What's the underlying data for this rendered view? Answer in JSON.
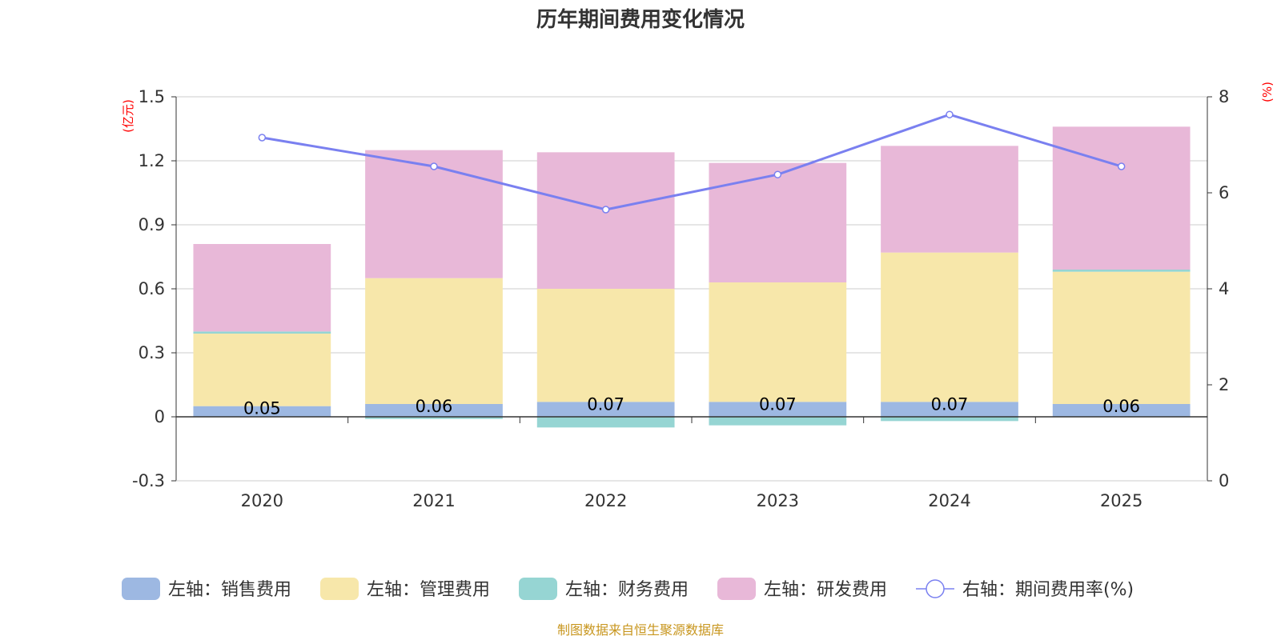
{
  "chart_data": {
    "type": "bar",
    "title": "历年期间费用变化情况",
    "categories": [
      "2020",
      "2021",
      "2022",
      "2023",
      "2024",
      "2025"
    ],
    "left_axis": {
      "unit_label": "(亿元)",
      "ylim": [
        -0.3,
        1.5
      ],
      "ticks": [
        1.5,
        1.2,
        0.9,
        0.6,
        0.3,
        0,
        -0.3
      ],
      "tick_labels": [
        "1.5",
        "1.2",
        "0.9",
        "0.6",
        "0.3",
        "0",
        "-0.3"
      ]
    },
    "right_axis": {
      "unit_label": "(%)",
      "ylim": [
        0,
        8
      ],
      "ticks": [
        8,
        6,
        4,
        2,
        0
      ],
      "tick_labels": [
        "8",
        "6",
        "4",
        "2",
        "0"
      ]
    },
    "series": [
      {
        "name": "左轴：销售费用",
        "kind": "bar",
        "color": "#9db8e2",
        "values": [
          0.05,
          0.06,
          0.07,
          0.07,
          0.07,
          0.06
        ],
        "data_labels": [
          "0.05",
          "0.06",
          "0.07",
          "0.07",
          "0.07",
          "0.06"
        ]
      },
      {
        "name": "左轴：管理费用",
        "kind": "bar",
        "color": "#f7e7aa",
        "values": [
          0.34,
          0.59,
          0.53,
          0.56,
          0.7,
          0.62
        ]
      },
      {
        "name": "左轴：财务费用",
        "kind": "bar",
        "color": "#96d5d3",
        "values": [
          0.01,
          -0.01,
          -0.05,
          -0.04,
          -0.02,
          0.01
        ]
      },
      {
        "name": "左轴：研发费用",
        "kind": "bar",
        "color": "#e8b8d8",
        "values": [
          0.41,
          0.6,
          0.64,
          0.56,
          0.5,
          0.67
        ]
      },
      {
        "name": "右轴：期间费用率(%)",
        "kind": "line",
        "axis": "right",
        "color": "#7a80f0",
        "values": [
          7.15,
          6.55,
          5.65,
          6.38,
          7.63,
          6.55
        ]
      }
    ],
    "source": "制图数据来自恒生聚源数据库"
  }
}
